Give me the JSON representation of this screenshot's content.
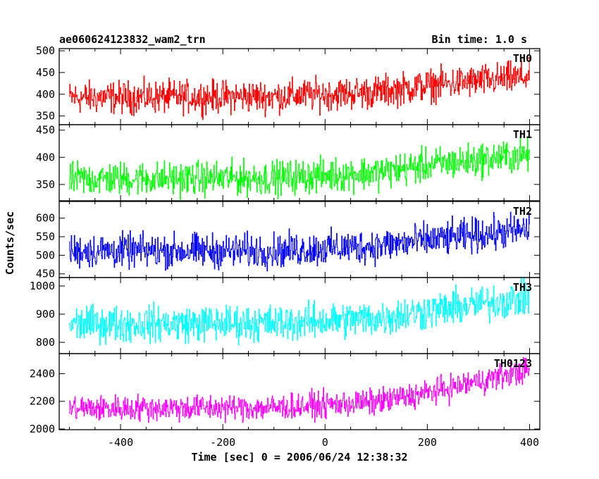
{
  "header": {
    "title": "ae060624123832_wam2_trn",
    "bin_time": "Bin time: 1.0 s"
  },
  "chart_data": {
    "type": "line",
    "title": "ae060624123832_wam2_trn",
    "subtitle": "Bin time: 1.0 s",
    "xlabel": "Time [sec] 0 = 2006/06/24 12:38:32",
    "ylabel": "Counts/sec",
    "xlim": [
      -520,
      420
    ],
    "x_ticks": [
      -400,
      -200,
      0,
      200,
      400
    ],
    "x": {
      "start": -500,
      "end": 400,
      "step": 1
    },
    "grid": false,
    "panels": [
      {
        "name": "TH0",
        "color": "#ff0000",
        "ylim": [
          330,
          505
        ],
        "y_ticks": [
          350,
          400,
          450,
          500
        ],
        "trend": [
          [
            -500,
            392
          ],
          [
            -100,
            395
          ],
          [
            100,
            405
          ],
          [
            200,
            420
          ],
          [
            400,
            440
          ]
        ],
        "noise": 55
      },
      {
        "name": "TH1",
        "color": "#00ff00",
        "ylim": [
          320,
          460
        ],
        "y_ticks": [
          350,
          400,
          450
        ],
        "trend": [
          [
            -500,
            360
          ],
          [
            -100,
            362
          ],
          [
            100,
            372
          ],
          [
            200,
            385
          ],
          [
            400,
            405
          ]
        ],
        "noise": 46
      },
      {
        "name": "TH2",
        "color": "#0000ff",
        "ylim": [
          440,
          645
        ],
        "y_ticks": [
          450,
          500,
          550,
          600
        ],
        "trend": [
          [
            -500,
            512
          ],
          [
            -100,
            512
          ],
          [
            100,
            525
          ],
          [
            200,
            540
          ],
          [
            400,
            570
          ]
        ],
        "noise": 68
      },
      {
        "name": "TH3",
        "color": "#00ffff",
        "ylim": [
          760,
          1030
        ],
        "y_ticks": [
          800,
          900,
          1000
        ],
        "trend": [
          [
            -500,
            865
          ],
          [
            -100,
            868
          ],
          [
            100,
            885
          ],
          [
            200,
            910
          ],
          [
            400,
            960
          ]
        ],
        "noise": 95
      },
      {
        "name": "TH0123",
        "color": "#ff00ff",
        "ylim": [
          1995,
          2545
        ],
        "y_ticks": [
          2000,
          2200,
          2400
        ],
        "trend": [
          [
            -500,
            2150
          ],
          [
            -100,
            2155
          ],
          [
            100,
            2195
          ],
          [
            200,
            2260
          ],
          [
            400,
            2430
          ]
        ],
        "noise": 140
      }
    ]
  }
}
